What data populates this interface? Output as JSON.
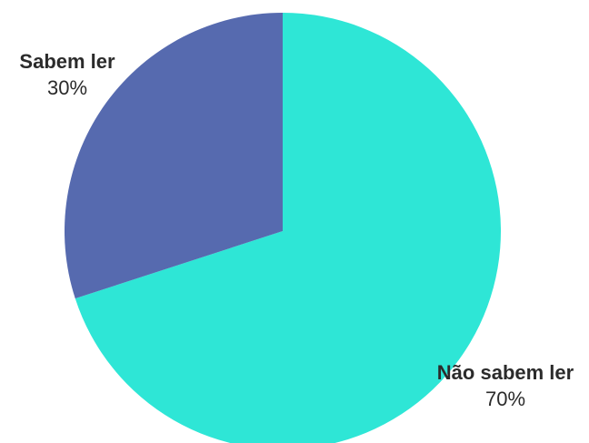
{
  "chart_data": {
    "type": "pie",
    "title": "",
    "slices": [
      {
        "label": "Sabem ler",
        "value": 30,
        "display": "30%",
        "color": "#566aaf"
      },
      {
        "label": "Não sabem ler",
        "value": 70,
        "display": "70%",
        "color": "#2ee6d6"
      }
    ],
    "legend": "none"
  }
}
